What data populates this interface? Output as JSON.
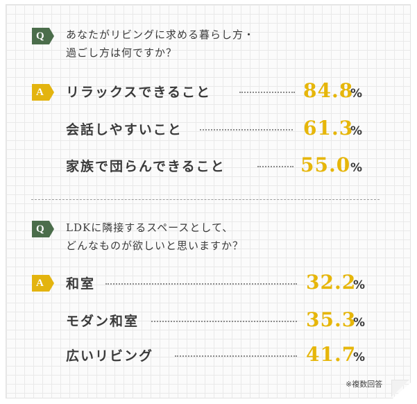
{
  "sections": [
    {
      "q_badge": "Q",
      "a_badge": "A",
      "question_line1": "あなたがリビングに求める暮らし方・",
      "question_line2": "過ごし方は何ですか？",
      "answers": [
        {
          "label": "リラックスできること",
          "value": "84.8",
          "unit": "%"
        },
        {
          "label": "会話しやすいこと",
          "value": "61.3",
          "unit": "%"
        },
        {
          "label": "家族で団らんできること",
          "value": "55.0",
          "unit": "%"
        }
      ]
    },
    {
      "q_badge": "Q",
      "a_badge": "A",
      "question_line1": "LDKに隣接するスペースとして、",
      "question_line2": "どんなものが欲しいと思いますか？",
      "answers": [
        {
          "label": "和室",
          "value": "32.2",
          "unit": "%"
        },
        {
          "label": "モダン和室",
          "value": "35.3",
          "unit": "%"
        },
        {
          "label": "広いリビング",
          "value": "41.7",
          "unit": "%"
        }
      ]
    }
  ],
  "footnote": "※複数回答",
  "colors": {
    "q_badge": "#4b6d4b",
    "a_badge": "#e3b40f",
    "value": "#e6b60a",
    "text": "#3a3a3a"
  }
}
